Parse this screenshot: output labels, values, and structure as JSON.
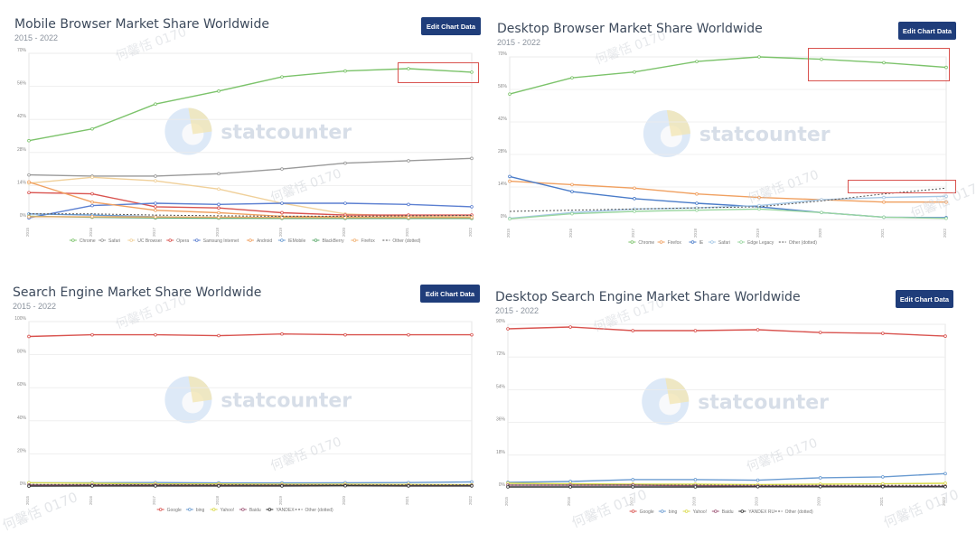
{
  "watermark_text": "何馨恬 0170",
  "brand": "statcounter",
  "edit_button_label": "Edit Chart Data",
  "colors": {
    "title": "#3d4a5c",
    "button": "#1f3d7a",
    "highlight": "#d9534f",
    "grid": "#ececec"
  },
  "chart_data": [
    {
      "type": "line",
      "title": "Mobile Browser Market Share Worldwide",
      "subtitle": "2015 - 2022",
      "x": [
        "2015",
        "2016",
        "2017",
        "2018",
        "2019",
        "2020",
        "2021",
        "2022"
      ],
      "ylim": [
        0,
        70
      ],
      "yticks": [
        0,
        14,
        28,
        42,
        56,
        70
      ],
      "ytick_labels": [
        "0%",
        "14%",
        "28%",
        "42%",
        "56%",
        "70%"
      ],
      "series": [
        {
          "name": "Chrome",
          "color": "#7cc36b",
          "values": [
            33,
            38,
            48.5,
            54,
            60,
            62.5,
            63.5,
            62
          ]
        },
        {
          "name": "Safari",
          "color": "#9a9a9a",
          "values": [
            18.5,
            18,
            18,
            19,
            21,
            23.5,
            24.5,
            25.5
          ]
        },
        {
          "name": "UC Browser",
          "color": "#f0d09a",
          "values": [
            15,
            17.5,
            16,
            12.5,
            6.5,
            2,
            1,
            0.8
          ]
        },
        {
          "name": "Opera",
          "color": "#d9534f",
          "values": [
            11,
            10.5,
            5,
            4.5,
            2.5,
            1.5,
            1.5,
            1.5
          ]
        },
        {
          "name": "Samsung Internet",
          "color": "#5b7fd1",
          "values": [
            0.3,
            5.5,
            6.5,
            6,
            6.5,
            6.5,
            6,
            5
          ]
        },
        {
          "name": "Android",
          "color": "#f0a060",
          "values": [
            15.5,
            7,
            3.5,
            2.5,
            1,
            0.8,
            0.6,
            0.5
          ]
        },
        {
          "name": "IEMobile",
          "color": "#6a9bd1",
          "values": [
            2,
            1.5,
            0.8,
            0.4,
            0.2,
            0.1,
            0.1,
            0.1
          ]
        },
        {
          "name": "BlackBerry",
          "color": "#5aa86a",
          "values": [
            1,
            0.6,
            0.3,
            0.2,
            0.1,
            0.1,
            0.1,
            0.1
          ]
        },
        {
          "name": "Firefox",
          "color": "#f0b070",
          "values": [
            0.8,
            0.8,
            0.7,
            0.6,
            0.5,
            0.5,
            0.5,
            0.5
          ]
        },
        {
          "name": "Other (dotted)",
          "color": "#555555",
          "dashed": true,
          "values": [
            2,
            2,
            1.5,
            1.2,
            1,
            1,
            1.2,
            1.3
          ]
        }
      ]
    },
    {
      "type": "line",
      "title": "Desktop Browser Market Share Worldwide",
      "subtitle": "2015 - 2022",
      "x": [
        "2015",
        "2016",
        "2017",
        "2018",
        "2019",
        "2020",
        "2021",
        "2022"
      ],
      "ylim": [
        0,
        70
      ],
      "yticks": [
        0,
        14,
        28,
        42,
        56,
        70
      ],
      "ytick_labels": [
        "0%",
        "14%",
        "28%",
        "42%",
        "56%",
        "70%"
      ],
      "series": [
        {
          "name": "Chrome",
          "color": "#7cc36b",
          "values": [
            54,
            61,
            63.5,
            68,
            70,
            69,
            67.5,
            65.5
          ]
        },
        {
          "name": "Firefox",
          "color": "#f0a060",
          "values": [
            16.5,
            15,
            13.5,
            11,
            9.5,
            8.5,
            7.5,
            7.5
          ]
        },
        {
          "name": "IE",
          "color": "#4a7cc9",
          "values": [
            18.5,
            12,
            9,
            7,
            5.5,
            3,
            1,
            0.8
          ]
        },
        {
          "name": "Safari",
          "color": "#a6c8e6",
          "values": [
            0.5,
            3,
            4.5,
            5,
            6,
            8.5,
            9.5,
            10
          ]
        },
        {
          "name": "Edge Legacy",
          "color": "#9ad6a0",
          "values": [
            0.3,
            2.5,
            3.5,
            4,
            4.5,
            3,
            1,
            0.5
          ]
        },
        {
          "name": "Other (dotted)",
          "color": "#555555",
          "dashed": true,
          "values": [
            3.5,
            4,
            4.5,
            5,
            5.5,
            8,
            11,
            13.5
          ]
        }
      ]
    },
    {
      "type": "line",
      "title": "Search Engine Market Share Worldwide",
      "subtitle": "2015 - 2022",
      "x": [
        "2015",
        "2016",
        "2017",
        "2018",
        "2019",
        "2020",
        "2021",
        "2022"
      ],
      "ylim": [
        0,
        100
      ],
      "yticks": [
        0,
        20,
        40,
        60,
        80,
        100
      ],
      "ytick_labels": [
        "0%",
        "20%",
        "40%",
        "60%",
        "80%",
        "100%"
      ],
      "series": [
        {
          "name": "Google",
          "color": "#d9534f",
          "values": [
            91,
            92,
            92,
            91.5,
            92.5,
            92,
            92,
            92
          ]
        },
        {
          "name": "bing",
          "color": "#6a9bd1",
          "values": [
            2.5,
            2.5,
            2.6,
            2.4,
            2.4,
            2.5,
            2.6,
            3
          ]
        },
        {
          "name": "Yahoo!",
          "color": "#dada4a",
          "values": [
            2.5,
            2.2,
            1.8,
            1.8,
            1.6,
            1.6,
            1.5,
            1.3
          ]
        },
        {
          "name": "Baidu",
          "color": "#a05a7a",
          "values": [
            1.2,
            1.1,
            1.1,
            1,
            1,
            1,
            0.9,
            0.9
          ]
        },
        {
          "name": "YANDEX",
          "color": "#333333",
          "values": [
            0.5,
            0.6,
            0.6,
            0.6,
            0.6,
            0.7,
            0.6,
            0.6
          ]
        },
        {
          "name": "Other (dotted)",
          "color": "#555555",
          "dashed": true,
          "values": [
            1.5,
            1.4,
            1.3,
            1.3,
            1.2,
            1.2,
            1.2,
            1.2
          ]
        }
      ]
    },
    {
      "type": "line",
      "title": "Desktop Search Engine Market Share Worldwide",
      "subtitle": "2015 - 2022",
      "x": [
        "2015",
        "2016",
        "2017",
        "2018",
        "2019",
        "2020",
        "2021",
        "2022"
      ],
      "ylim": [
        0,
        90
      ],
      "yticks": [
        0,
        18,
        36,
        54,
        72,
        90
      ],
      "ytick_labels": [
        "0%",
        "18%",
        "36%",
        "54%",
        "72%",
        "90%"
      ],
      "series": [
        {
          "name": "Google",
          "color": "#d9534f",
          "values": [
            87.5,
            88.5,
            86.5,
            86.5,
            87,
            85.5,
            85,
            83.5
          ]
        },
        {
          "name": "bing",
          "color": "#6a9bd1",
          "values": [
            3,
            3.5,
            4.5,
            4.5,
            4.2,
            5.5,
            6,
            7.8
          ]
        },
        {
          "name": "Yahoo!",
          "color": "#dada4a",
          "values": [
            2.5,
            2.2,
            2,
            2,
            1.8,
            2,
            2.2,
            2.5
          ]
        },
        {
          "name": "Baidu",
          "color": "#a05a7a",
          "values": [
            1.5,
            1.5,
            1.5,
            1.2,
            1,
            1,
            0.9,
            0.9
          ]
        },
        {
          "name": "YANDEX RU",
          "color": "#333333",
          "values": [
            0.5,
            0.5,
            0.5,
            0.5,
            0.6,
            0.6,
            0.6,
            0.6
          ]
        },
        {
          "name": "Other (dotted)",
          "color": "#555555",
          "dashed": true,
          "values": [
            1.5,
            1.5,
            1.5,
            1.5,
            1.4,
            1.4,
            1.4,
            1.4
          ]
        }
      ]
    }
  ]
}
